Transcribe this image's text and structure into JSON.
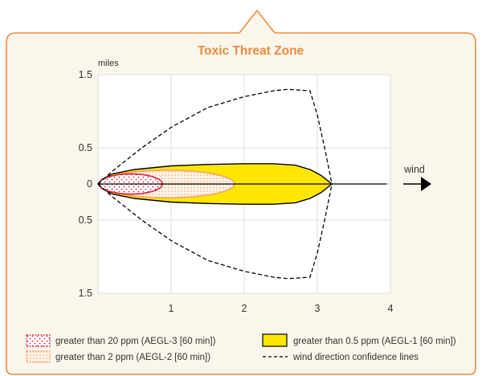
{
  "colors": {
    "panel_border": "#F08A3C",
    "panel_fill": "#FBF6EC",
    "title": "#F08A3C",
    "grid": "#DDDDDD",
    "aegl1": "#FFE600",
    "aegl2": "#F4A26A",
    "aegl3": "#D8203C",
    "line": "#000000"
  },
  "chart_data": {
    "type": "area",
    "title": "Toxic Threat Zone",
    "y_unit_label": "miles",
    "x_range": [
      0,
      4
    ],
    "y_range": [
      -1.5,
      1.5
    ],
    "x_ticks": [
      "1",
      "2",
      "3",
      "4"
    ],
    "y_ticks": [
      {
        "value": 1.5,
        "label": "1.5"
      },
      {
        "value": 0.5,
        "label": "0.5"
      },
      {
        "value": 0,
        "label": "0"
      },
      {
        "value": -0.5,
        "label": "0.5"
      },
      {
        "value": -1.5,
        "label": "1.5"
      }
    ],
    "grid": true,
    "wind_label": "wind",
    "zones": [
      {
        "name": "AEGL-1",
        "fill": "#FFE600",
        "stroke": "#000000",
        "upper": [
          [
            0,
            0
          ],
          [
            0.05,
            0.06
          ],
          [
            0.2,
            0.14
          ],
          [
            0.5,
            0.2
          ],
          [
            1.0,
            0.25
          ],
          [
            1.5,
            0.27
          ],
          [
            2.0,
            0.28
          ],
          [
            2.4,
            0.28
          ],
          [
            2.7,
            0.26
          ],
          [
            2.9,
            0.2
          ],
          [
            3.05,
            0.12
          ],
          [
            3.2,
            0
          ]
        ],
        "lower": [
          [
            0,
            0
          ],
          [
            0.05,
            -0.06
          ],
          [
            0.2,
            -0.14
          ],
          [
            0.5,
            -0.2
          ],
          [
            1.0,
            -0.25
          ],
          [
            1.5,
            -0.27
          ],
          [
            2.0,
            -0.28
          ],
          [
            2.4,
            -0.28
          ],
          [
            2.7,
            -0.26
          ],
          [
            2.9,
            -0.2
          ],
          [
            3.05,
            -0.12
          ],
          [
            3.2,
            0
          ]
        ]
      },
      {
        "name": "AEGL-2",
        "ellipse": {
          "x0": 0.02,
          "x1": 1.87,
          "half_width": 0.19
        },
        "stroke": "#F4A26A",
        "pattern": "orange-grid"
      },
      {
        "name": "AEGL-3",
        "ellipse": {
          "x0": 0.02,
          "x1": 0.88,
          "half_width": 0.14
        },
        "stroke": "#D8203C",
        "pattern": "red-dots"
      }
    ],
    "confidence_line": [
      [
        0,
        0
      ],
      [
        0.2,
        0.18
      ],
      [
        0.6,
        0.5
      ],
      [
        1.0,
        0.78
      ],
      [
        1.5,
        1.05
      ],
      [
        2.0,
        1.2
      ],
      [
        2.4,
        1.28
      ],
      [
        2.6,
        1.3
      ],
      [
        2.9,
        1.28
      ],
      [
        3.0,
        0.95
      ],
      [
        3.1,
        0.5
      ],
      [
        3.2,
        0
      ]
    ],
    "centerline": {
      "x0": 0,
      "x1": 3.95
    },
    "legend": [
      {
        "key": "aegl3",
        "label": "greater than 20 ppm (AEGL-3 [60 min])"
      },
      {
        "key": "aegl1",
        "label": "greater than 0.5 ppm (AEGL-1 [60 min])"
      },
      {
        "key": "aegl2",
        "label": "greater than 2 ppm (AEGL-2 [60 min])"
      },
      {
        "key": "conf",
        "label": "wind direction confidence lines"
      }
    ]
  }
}
